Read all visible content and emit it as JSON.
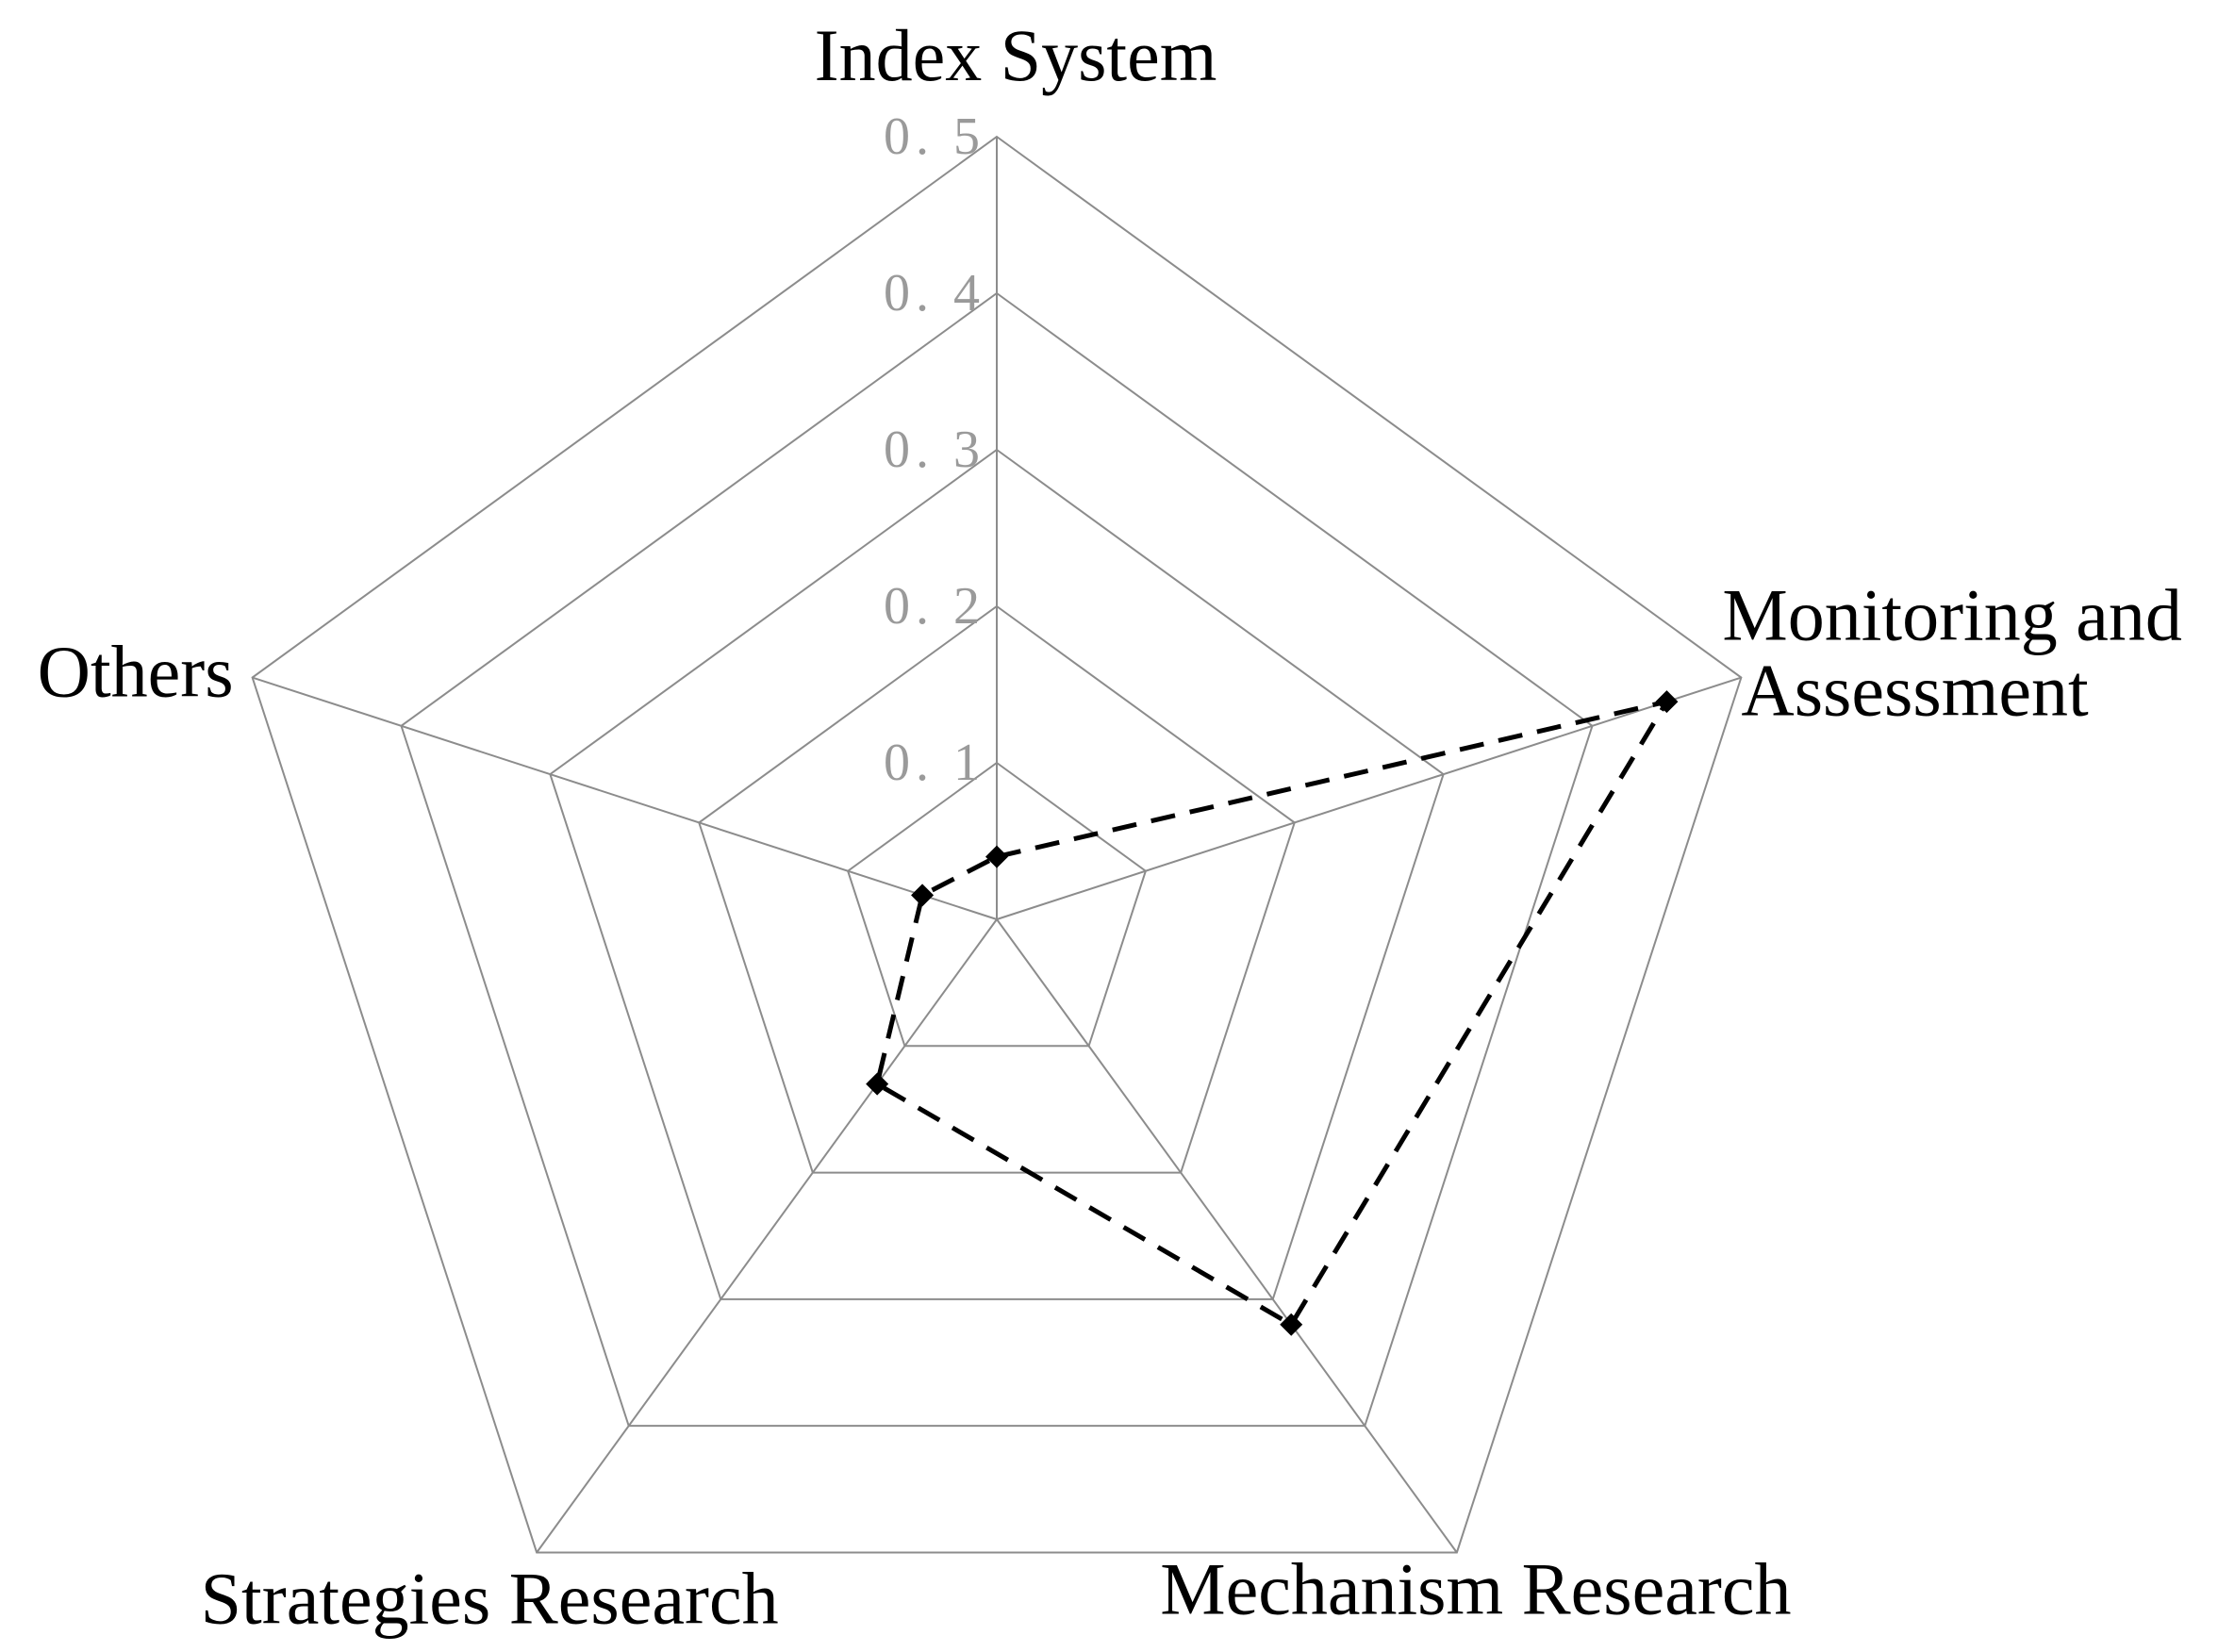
{
  "chart_data": {
    "type": "radar",
    "categories": [
      "Index System",
      "Monitoring and Assessment",
      "Mechanism Research",
      "Strategies Research",
      "Others"
    ],
    "category_label_lines": [
      [
        "Index System"
      ],
      [
        "Monitoring and",
        "Assessment"
      ],
      [
        "Mechanism Research"
      ],
      [
        "Strategies Research"
      ],
      [
        "Others"
      ]
    ],
    "radial_ticks": [
      0.1,
      0.2,
      0.3,
      0.4,
      0.5
    ],
    "radial_tick_labels": [
      "0. 1",
      "0. 2",
      "0. 3",
      "0. 4",
      "0. 5"
    ],
    "rlim": [
      0,
      0.5
    ],
    "series": [
      {
        "values": [
          0.04,
          0.45,
          0.32,
          0.13,
          0.05
        ],
        "line_style": "dashed",
        "marker": "diamond",
        "color": "#000000"
      }
    ],
    "grid": true,
    "grid_color": "#8c8c8c",
    "tick_label_color": "#9a9a9a"
  }
}
